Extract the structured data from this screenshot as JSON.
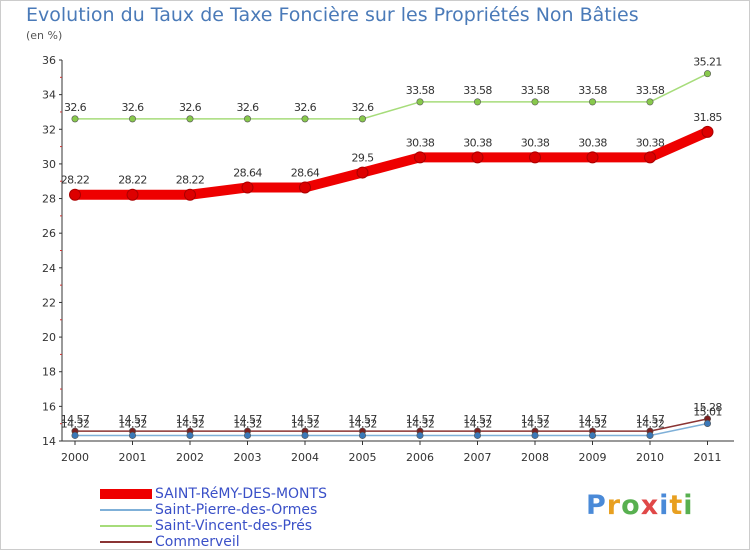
{
  "chart_data": {
    "type": "line",
    "title": "Evolution du Taux de Taxe Foncière sur les Propriétés Non Bâties",
    "subtitle": "(en %)",
    "xlabel": "",
    "ylabel": "",
    "ylim": [
      14,
      36
    ],
    "yticks": [
      14,
      16,
      18,
      20,
      22,
      24,
      26,
      28,
      30,
      32,
      34,
      36
    ],
    "categories": [
      "2000",
      "2001",
      "2002",
      "2003",
      "2004",
      "2005",
      "2006",
      "2007",
      "2008",
      "2009",
      "2010",
      "2011"
    ],
    "grid": false,
    "series": [
      {
        "name": "Saint-Vincent-des-Prés",
        "color": "#a6dc7a",
        "dot": "#88c94c",
        "strong": false,
        "values": [
          32.6,
          32.6,
          32.6,
          32.6,
          32.6,
          32.6,
          33.58,
          33.58,
          33.58,
          33.58,
          33.58,
          35.21
        ],
        "labels": [
          "32.6",
          "32.6",
          "32.6",
          "32.6",
          "32.6",
          "32.6",
          "33.58",
          "33.58",
          "33.58",
          "33.58",
          "33.58",
          "35.21"
        ]
      },
      {
        "name": "Commerveil",
        "color": "#8a3434",
        "dot": "#7a2020",
        "strong": false,
        "values": [
          14.57,
          14.57,
          14.57,
          14.57,
          14.57,
          14.57,
          14.57,
          14.57,
          14.57,
          14.57,
          14.57,
          15.28
        ],
        "labels": [
          "14.57",
          "14.57",
          "14.57",
          "14.57",
          "14.57",
          "14.57",
          "14.57",
          "14.57",
          "14.57",
          "14.57",
          "14.57",
          "15.28"
        ]
      },
      {
        "name": "Saint-Pierre-des-Ormes",
        "color": "#7fb0d8",
        "dot": "#3a78b8",
        "strong": false,
        "values": [
          14.32,
          14.32,
          14.32,
          14.32,
          14.32,
          14.32,
          14.32,
          14.32,
          14.32,
          14.32,
          14.32,
          15.01
        ],
        "labels": [
          "14.32",
          "14.32",
          "14.32",
          "14.32",
          "14.32",
          "14.32",
          "14.32",
          "14.32",
          "14.32",
          "14.32",
          "14.32",
          "15.01"
        ]
      },
      {
        "name": "SAINT-RéMY-DES-MONTS",
        "color": "#ee0000",
        "dot": "#dd0000",
        "strong": true,
        "values": [
          28.22,
          28.22,
          28.22,
          28.64,
          28.64,
          29.5,
          30.38,
          30.38,
          30.38,
          30.38,
          30.38,
          31.85
        ],
        "labels": [
          "28.22",
          "28.22",
          "28.22",
          "28.64",
          "28.64",
          "29.5",
          "30.38",
          "30.38",
          "30.38",
          "30.38",
          "30.38",
          "31.85"
        ]
      }
    ]
  },
  "legend": [
    {
      "label": "SAINT-RéMY-DES-MONTS",
      "color": "#ee0000",
      "strong": true
    },
    {
      "label": "Saint-Pierre-des-Ormes",
      "color": "#7fb0d8",
      "strong": false
    },
    {
      "label": "Saint-Vincent-des-Prés",
      "color": "#a6dc7a",
      "strong": false
    },
    {
      "label": "Commerveil",
      "color": "#8a3434",
      "strong": false
    }
  ],
  "logo": {
    "letters": [
      {
        "ch": "P",
        "color": "#4a8ad8"
      },
      {
        "ch": "r",
        "color": "#e8a020"
      },
      {
        "ch": "o",
        "color": "#58b050"
      },
      {
        "ch": "x",
        "color": "#e04848"
      },
      {
        "ch": "i",
        "color": "#4a8ad8"
      },
      {
        "ch": "t",
        "color": "#e8a020"
      },
      {
        "ch": "i",
        "color": "#58b050"
      }
    ]
  }
}
